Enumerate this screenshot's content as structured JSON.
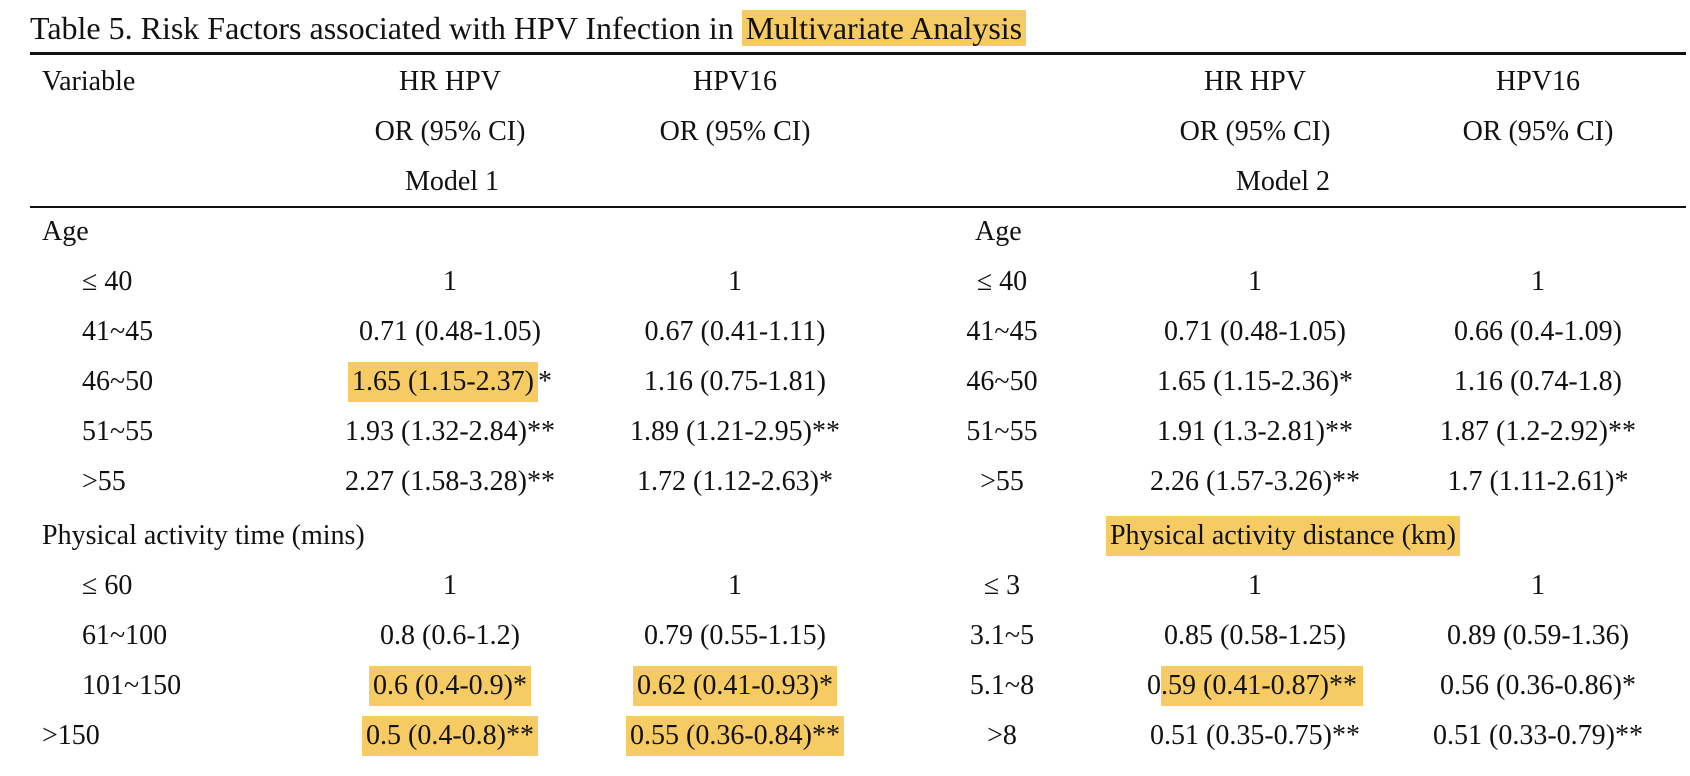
{
  "caption": {
    "prefix": "Table 5. Risk Factors associated with HPV Infection in ",
    "highlight": "Multivariate Analysis"
  },
  "header": {
    "variable": "Variable",
    "hr_hpv": "HR HPV",
    "hpv16": "HPV16",
    "or_ci": "OR (95% CI)",
    "model1": "Model 1",
    "model2": "Model 2"
  },
  "sections": {
    "age": "Age",
    "pa_time": "Physical activity time (mins)",
    "pa_distance": "Physical activity distance (km)"
  },
  "left_rows": [
    {
      "label": "≤ 40",
      "hr": "1",
      "hpv16": "1"
    },
    {
      "label": "41~45",
      "hr": "0.71 (0.48-1.05)",
      "hpv16": "0.67 (0.41-1.11)"
    },
    {
      "label": "46~50",
      "hr": "1.65 (1.15-2.37)",
      "hr_star": "*",
      "hpv16": "1.16 (0.75-1.81)"
    },
    {
      "label": "51~55",
      "hr": "1.93 (1.32-2.84)**",
      "hpv16": "1.89 (1.21-2.95)**"
    },
    {
      "label": ">55",
      "hr": "2.27 (1.58-3.28)**",
      "hpv16": "1.72 (1.12-2.63)*"
    },
    {
      "label": "≤ 60",
      "hr": "1",
      "hpv16": "1"
    },
    {
      "label": "61~100",
      "hr": "0.8 (0.6-1.2)",
      "hpv16": "0.79 (0.55-1.15)"
    },
    {
      "label": "101~150",
      "hr": "0.6 (0.4-0.9)*",
      "hpv16": "0.62 (0.41-0.93)*"
    },
    {
      "label": ">150",
      "hr": "0.5 (0.4-0.8)**",
      "hpv16": "0.55 (0.36-0.84)**"
    }
  ],
  "right_rows": [
    {
      "label": "≤ 40",
      "hr": "1",
      "hpv16": "1"
    },
    {
      "label": "41~45",
      "hr": "0.71 (0.48-1.05)",
      "hpv16": "0.66 (0.4-1.09)"
    },
    {
      "label": "46~50",
      "hr": "1.65 (1.15-2.36)*",
      "hpv16": "1.16 (0.74-1.8)"
    },
    {
      "label": "51~55",
      "hr": "1.91 (1.3-2.81)**",
      "hpv16": "1.87 (1.2-2.92)**"
    },
    {
      "label": ">55",
      "hr": "2.26 (1.57-3.26)**",
      "hpv16": "1.7 (1.11-2.61)*"
    },
    {
      "label": "≤ 3",
      "hr": "1",
      "hpv16": "1"
    },
    {
      "label": "3.1~5",
      "hr": "0.85 (0.58-1.25)",
      "hpv16": "0.89 (0.59-1.36)"
    },
    {
      "label": "5.1~8",
      "hr_pre": "0",
      "hr": ".59 (0.41-0.87)**",
      "hpv16": "0.56 (0.36-0.86)*"
    },
    {
      "label": ">8",
      "hr": "0.51 (0.35-0.75)**",
      "hpv16": "0.51 (0.33-0.79)**"
    }
  ],
  "highlight_color": "#f6cb64"
}
